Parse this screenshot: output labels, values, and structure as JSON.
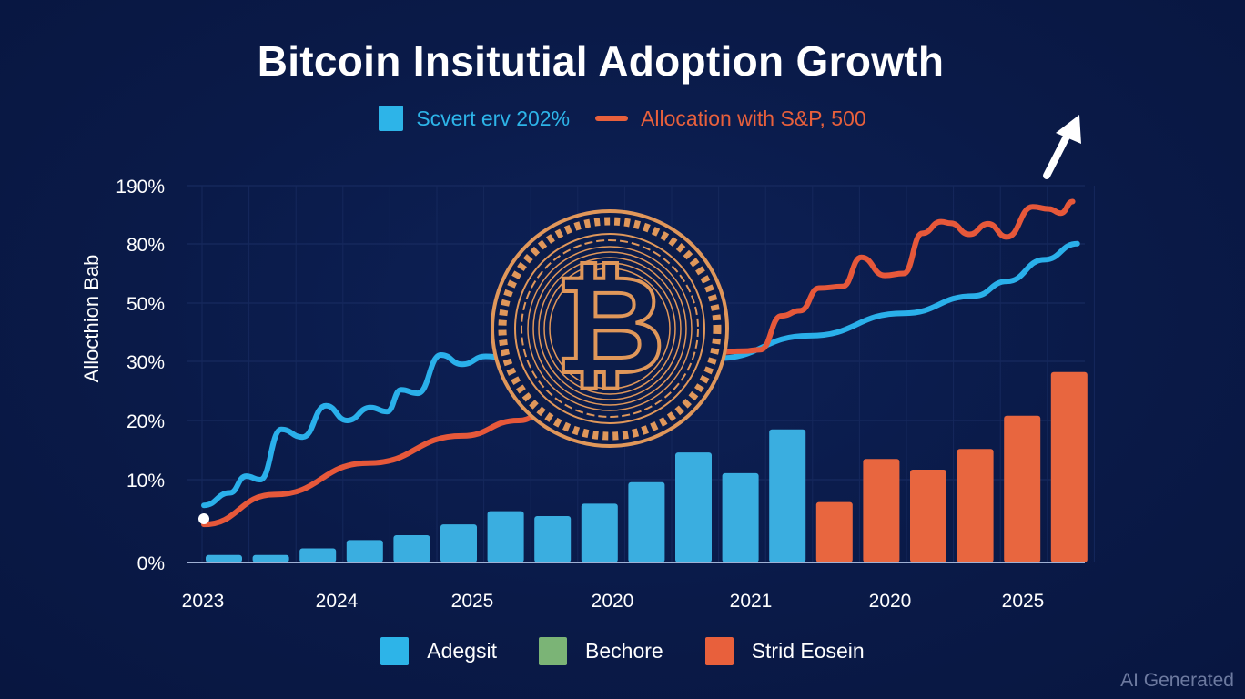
{
  "title": "Bitcoin Insitutial Adoption Growth",
  "top_legend": [
    {
      "label": "Scvert erv 202%",
      "type": "square",
      "color": "#2db4e8"
    },
    {
      "label": "Allocation with S&P, 500",
      "type": "line",
      "color": "#e8603c"
    }
  ],
  "bottom_legend": [
    {
      "label": "Adegsit",
      "color": "#2db4e8"
    },
    {
      "label": "Bechore",
      "color": "#7bb476"
    },
    {
      "label": "Strid Eosein",
      "color": "#e8603c"
    }
  ],
  "watermark": "AI Generated",
  "icons": {
    "coin": "bitcoin-coin-icon",
    "arrow": "up-arrow-icon"
  },
  "chart_data": {
    "type": "bar",
    "title": "Bitcoin Insitutial Adoption Growth",
    "ylabel": "Allocthion Bab",
    "xlabel": "",
    "y_ticks": [
      "0%",
      "10%",
      "20%",
      "30%",
      "50%",
      "80%",
      "190%"
    ],
    "y_tick_values": [
      0,
      10,
      20,
      30,
      50,
      80,
      190
    ],
    "x_tick_labels": [
      "2023",
      "2024",
      "2025",
      "2020",
      "2021",
      "2020",
      "2025"
    ],
    "grid": true,
    "legend_placement": "top-center and bottom-center",
    "bars": {
      "blue": {
        "name": "Adegsit",
        "color": "#3aaee0",
        "values": [
          0.9,
          0.9,
          1.7,
          2.7,
          3.3,
          4.6,
          6.2,
          5.6,
          7.1,
          9.7,
          14.6,
          11.1,
          18.5
        ]
      },
      "orange": {
        "name": "Strid Eosein",
        "color": "#e8663f",
        "values": [
          7.3,
          13.5,
          11.7,
          15.2,
          20.8,
          28.2
        ]
      }
    },
    "series": [
      {
        "name": "Scvert erv 202%",
        "type": "line",
        "color": "#2ab0ea",
        "x_index": [
          0,
          0.55,
          0.9,
          1.2,
          1.65,
          2.1,
          2.6,
          3.05,
          3.55,
          3.9,
          4.2,
          4.55,
          5.05,
          5.5,
          6.0,
          6.35,
          10.9,
          12.9,
          14.9,
          16.4,
          17.1,
          17.9,
          18.6
        ],
        "values": [
          6.9,
          8.4,
          10.6,
          10.0,
          18.5,
          17.2,
          22.5,
          20.0,
          22.2,
          21.5,
          25.2,
          24.6,
          32.2,
          29.5,
          31.7,
          31.4,
          31.0,
          38.8,
          46.5,
          53.6,
          61.0,
          72.0,
          80.5
        ]
      },
      {
        "name": "Allocation with S&P, 500",
        "type": "line",
        "color": "#e6583a",
        "x_index": [
          0,
          1.5,
          3.5,
          5.5,
          6.7,
          7.3,
          11.5,
          11.85,
          12.3,
          12.7,
          13.1,
          13.6,
          14.0,
          14.5,
          14.9,
          15.3,
          15.7,
          15.9,
          16.3,
          16.7,
          17.1,
          17.65,
          18.0,
          18.25,
          18.5
        ],
        "values": [
          4.6,
          8.2,
          12.8,
          17.4,
          20.0,
          21.4,
          33.5,
          34.0,
          45.6,
          47.4,
          57.6,
          58.4,
          73.2,
          64.0,
          65.0,
          100.0,
          122.0,
          119.0,
          98.0,
          118.0,
          93.0,
          150.0,
          146.0,
          138.0,
          160.0
        ]
      }
    ]
  }
}
